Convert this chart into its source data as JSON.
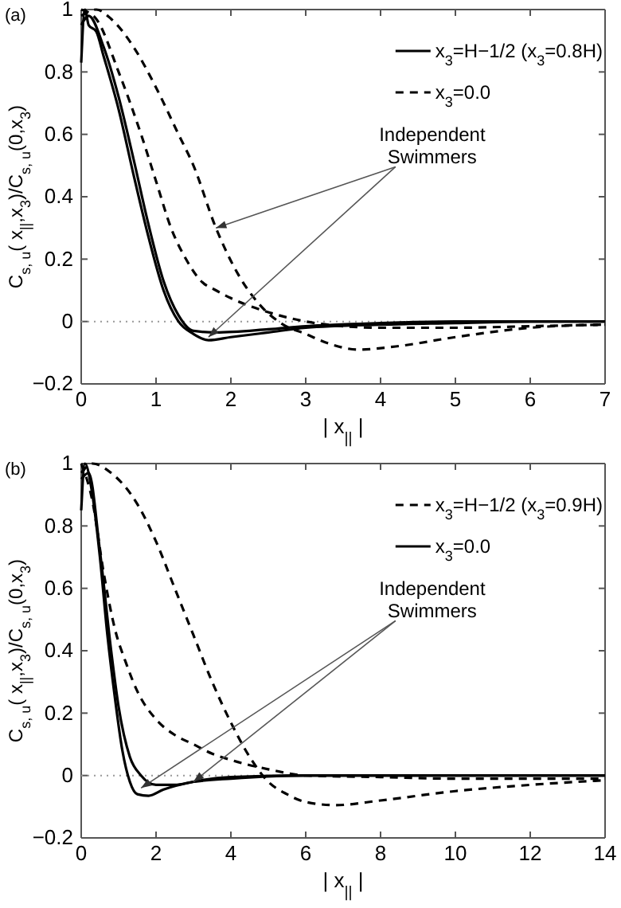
{
  "chart_data": [
    {
      "type": "line",
      "title": "(a)",
      "xlabel": "| x$_{||}$ |",
      "ylabel": "C$_{s, u}$( x$_{||}$,x$_{3}$)/C$_{s, u}$(0,x$_{3}$)",
      "xlim": [
        0,
        7
      ],
      "xticks": [
        0,
        1,
        2,
        3,
        4,
        5,
        6,
        7
      ],
      "ylim": [
        -0.2,
        1
      ],
      "yticks": [
        -0.2,
        0,
        0.2,
        0.4,
        0.6,
        0.8,
        1
      ],
      "legend": "top right",
      "grid": false,
      "annotations": [
        {
          "text": "Independent Swimmers",
          "x": 1.7,
          "y": -0.05
        }
      ],
      "ref_lines": [
        {
          "axis": "y",
          "value": 0,
          "color": "#999999",
          "line_style": "dotted"
        }
      ],
      "series": [
        {
          "name": "x$_{3}$=H−1/2 (x$_{3}$=0.8H)",
          "color": "#000000",
          "line_style": "solid",
          "x": [
            0,
            0.05,
            0.1,
            0.2,
            0.3,
            0.5,
            0.7,
            0.9,
            1.1,
            1.3,
            1.5,
            1.7,
            2,
            2.5,
            3,
            4,
            5,
            6,
            7
          ],
          "values": [
            0.83,
            1.0,
            0.95,
            0.93,
            0.85,
            0.68,
            0.47,
            0.27,
            0.1,
            0.0,
            -0.04,
            -0.06,
            -0.05,
            -0.035,
            -0.02,
            -0.01,
            -0.005,
            0,
            0
          ]
        },
        {
          "color": "#000000",
          "line_style": "solid",
          "x": [
            0,
            0.1,
            0.3,
            0.5,
            0.7,
            0.9,
            1.1,
            1.3,
            1.5,
            1.8,
            2.5,
            3,
            4,
            5,
            7
          ],
          "values": [
            0.95,
            0.98,
            0.88,
            0.72,
            0.52,
            0.31,
            0.13,
            0.02,
            -0.03,
            -0.035,
            -0.025,
            -0.015,
            -0.005,
            0,
            0
          ]
        },
        {
          "name": "x$_{3}$=0.0",
          "color": "#000000",
          "line_style": "dashed",
          "x": [
            0,
            0.2,
            0.5,
            0.8,
            1.0,
            1.2,
            1.4,
            1.6,
            1.8,
            2.0,
            2.5,
            3,
            3.5,
            4,
            5,
            6,
            7
          ],
          "values": [
            1.0,
            0.97,
            0.8,
            0.6,
            0.45,
            0.3,
            0.2,
            0.13,
            0.1,
            0.075,
            0.03,
            0.0,
            -0.015,
            -0.02,
            -0.02,
            -0.015,
            -0.01
          ]
        },
        {
          "color": "#000000",
          "line_style": "dashed",
          "x": [
            0,
            0.2,
            0.4,
            0.7,
            1.0,
            1.3,
            1.5,
            1.8,
            2.1,
            2.4,
            2.7,
            3,
            3.3,
            3.7,
            4.2,
            5,
            6,
            7
          ],
          "values": [
            0.98,
            1.0,
            0.97,
            0.88,
            0.75,
            0.6,
            0.5,
            0.3,
            0.15,
            0.05,
            -0.01,
            -0.04,
            -0.07,
            -0.09,
            -0.08,
            -0.05,
            -0.02,
            -0.01
          ]
        }
      ]
    },
    {
      "type": "line",
      "title": "(b)",
      "xlabel": "| x$_{||}$ |",
      "ylabel": "C$_{s, u}$( x$_{||}$,x$_{3}$)/C$_{s, u}$(0,x$_{3}$)",
      "xlim": [
        0,
        14
      ],
      "xticks": [
        0,
        2,
        4,
        6,
        8,
        10,
        12,
        14
      ],
      "ylim": [
        -0.2,
        1
      ],
      "yticks": [
        -0.2,
        0,
        0.2,
        0.4,
        0.6,
        0.8,
        1
      ],
      "legend": "top right",
      "grid": false,
      "annotations": [
        {
          "text": "Independent Swimmers",
          "x": 1.6,
          "y": -0.04
        }
      ],
      "ref_lines": [
        {
          "axis": "y",
          "value": 0,
          "color": "#999999",
          "line_style": "dotted"
        }
      ],
      "series": [
        {
          "name": "x$_{3}$=H−1/2 (x$_{3}$=0.9H)",
          "color": "#000000",
          "line_style": "dashed",
          "x": [
            0,
            0.3,
            0.6,
            0.9,
            1.2,
            1.5,
            2,
            2.5,
            3,
            3.5,
            4,
            5,
            6,
            8,
            10,
            12,
            14
          ],
          "values": [
            1.0,
            0.88,
            0.65,
            0.47,
            0.36,
            0.27,
            0.18,
            0.13,
            0.1,
            0.07,
            0.05,
            0.02,
            0.0,
            -0.005,
            -0.01,
            -0.01,
            -0.01
          ]
        },
        {
          "color": "#000000",
          "line_style": "dashed",
          "x": [
            0,
            0.3,
            0.8,
            1.5,
            2,
            2.5,
            3,
            3.5,
            4,
            4.5,
            5,
            5.5,
            6,
            6.8,
            8,
            10,
            12,
            14
          ],
          "values": [
            0.97,
            1.0,
            0.97,
            0.87,
            0.75,
            0.6,
            0.45,
            0.3,
            0.17,
            0.06,
            -0.02,
            -0.06,
            -0.085,
            -0.095,
            -0.08,
            -0.05,
            -0.03,
            -0.015
          ]
        },
        {
          "name": "x$_{3}$=0.0",
          "color": "#000000",
          "line_style": "solid",
          "x": [
            0,
            0.1,
            0.3,
            0.5,
            0.7,
            0.9,
            1.1,
            1.3,
            1.5,
            1.8,
            2.2,
            3,
            4,
            6,
            14
          ],
          "values": [
            0.85,
            1.0,
            0.9,
            0.7,
            0.45,
            0.25,
            0.08,
            -0.02,
            -0.06,
            -0.065,
            -0.045,
            -0.02,
            -0.005,
            0,
            0
          ]
        },
        {
          "color": "#000000",
          "line_style": "solid",
          "x": [
            0,
            0.2,
            0.5,
            0.8,
            1.0,
            1.3,
            1.6,
            2,
            2.5,
            3,
            4,
            6,
            14
          ],
          "values": [
            0.95,
            0.97,
            0.72,
            0.4,
            0.22,
            0.06,
            0.0,
            -0.03,
            -0.03,
            -0.02,
            -0.01,
            0,
            0
          ]
        }
      ]
    }
  ]
}
